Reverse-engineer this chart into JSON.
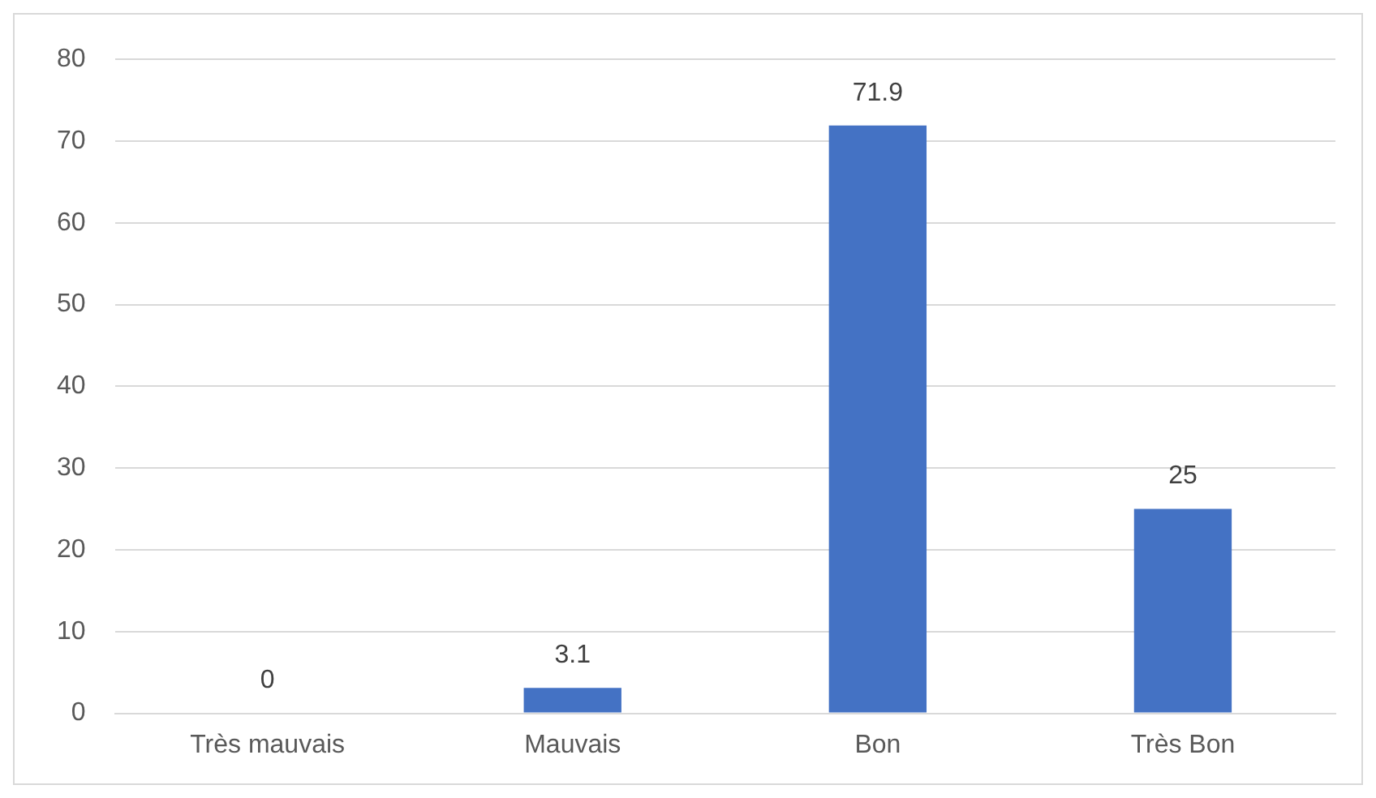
{
  "chart_data": {
    "type": "bar",
    "categories": [
      "Très mauvais",
      "Mauvais",
      "Bon",
      "Très Bon"
    ],
    "values": [
      0,
      3.1,
      71.9,
      25
    ],
    "color": "#4472c4",
    "ylim": [
      0,
      80
    ],
    "yticks": [
      0,
      10,
      20,
      30,
      40,
      50,
      60,
      70,
      80
    ],
    "grid": "y",
    "data_labels": true,
    "legend": false
  }
}
